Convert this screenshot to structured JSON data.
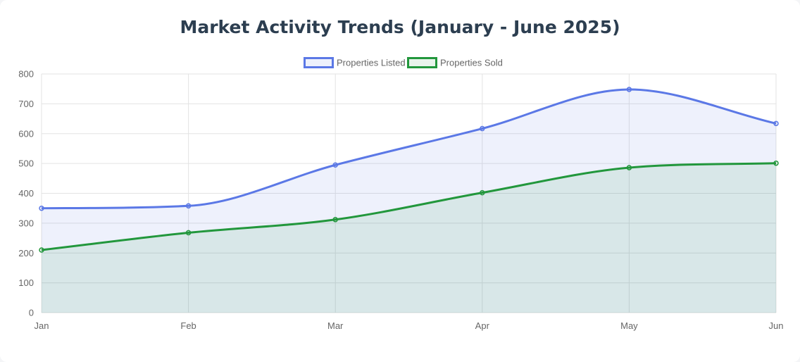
{
  "chart_data": {
    "type": "line",
    "title": "Market Activity Trends (January - June 2025)",
    "categories": [
      "Jan",
      "Feb",
      "Mar",
      "Apr",
      "May",
      "Jun"
    ],
    "ylim": [
      0,
      800
    ],
    "yticks": [
      0,
      100,
      200,
      300,
      400,
      500,
      600,
      700,
      800
    ],
    "grid": true,
    "legend_position": "top-center",
    "series": [
      {
        "name": "Properties Listed",
        "values": [
          350,
          358,
          495,
          617,
          748,
          634
        ],
        "color": "#5b78e6",
        "fill": "rgba(91,120,230,0.1)"
      },
      {
        "name": "Properties Sold",
        "values": [
          210,
          268,
          312,
          402,
          486,
          501
        ],
        "color": "#22973c",
        "fill": "rgba(34,151,60,0.1)"
      }
    ]
  }
}
